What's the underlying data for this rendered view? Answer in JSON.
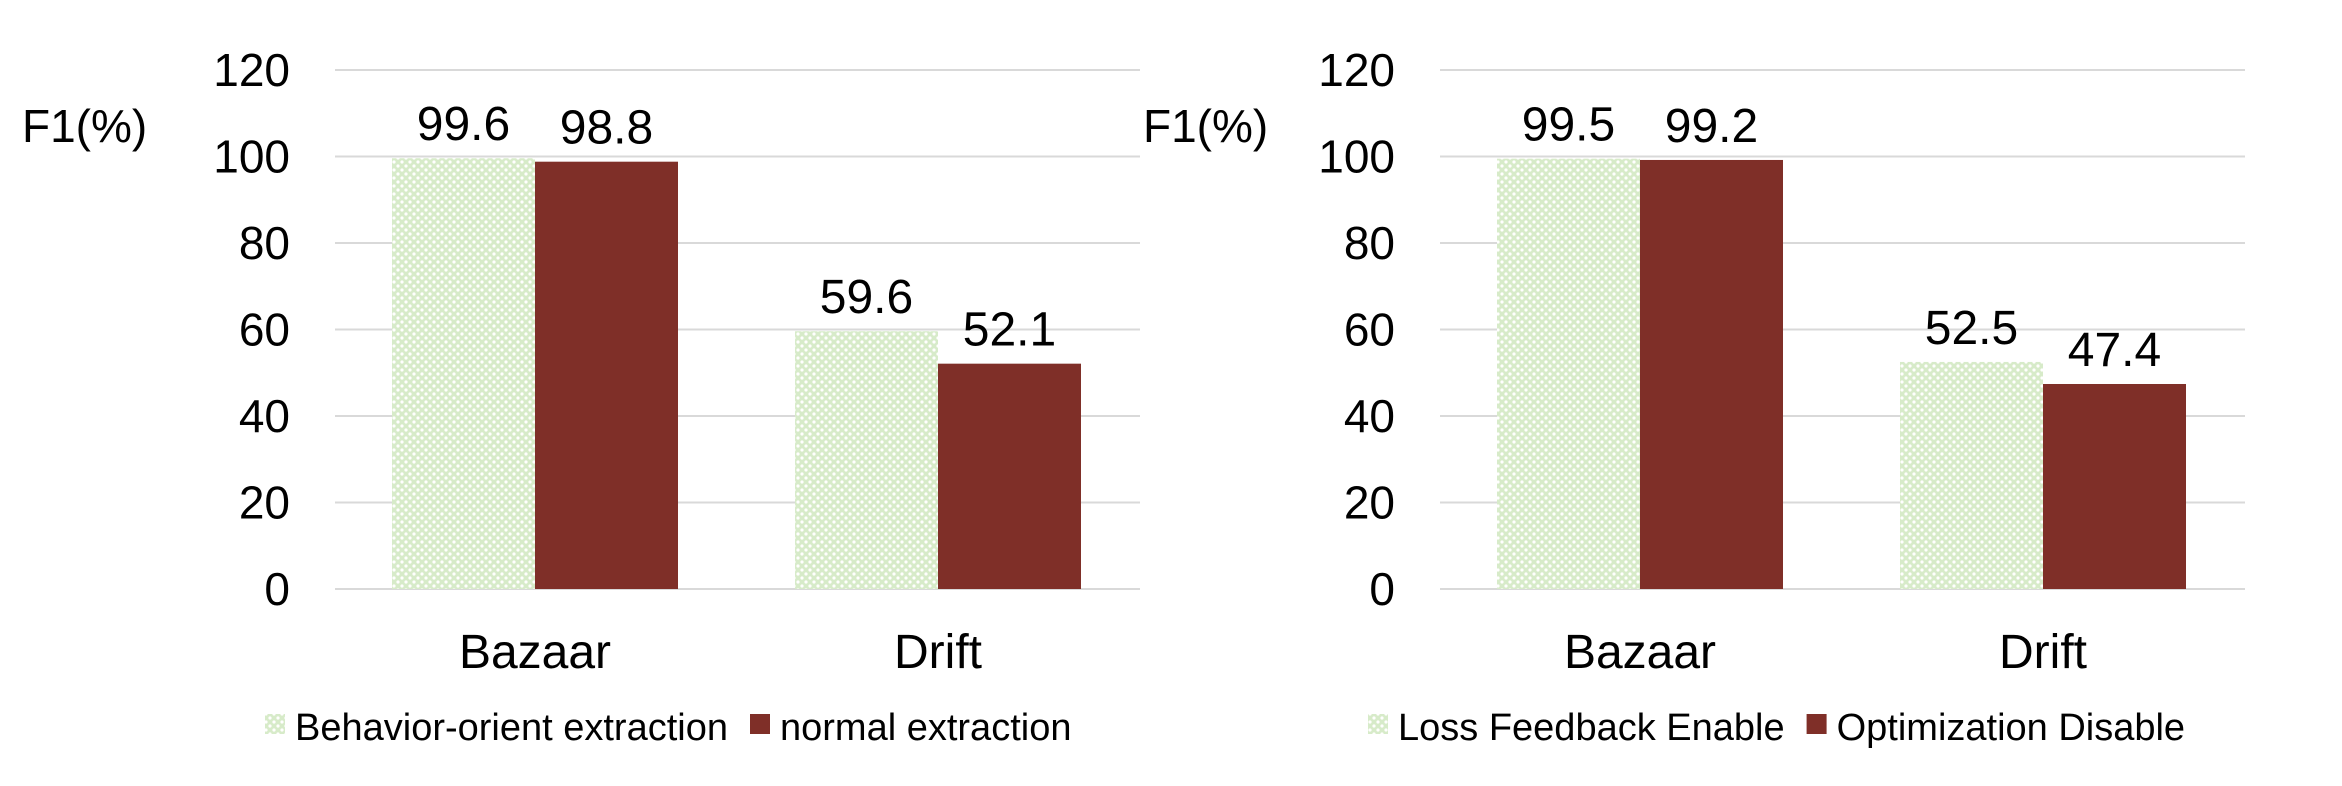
{
  "chart_data": [
    {
      "type": "bar",
      "ylabel": "F1(%)",
      "ylim": [
        0,
        120
      ],
      "yticks": [
        0,
        20,
        40,
        60,
        80,
        100,
        120
      ],
      "grid": true,
      "legend_position": "bottom",
      "categories": [
        "Bazaar",
        "Drift"
      ],
      "series": [
        {
          "name": "Behavior-orient extraction",
          "values": [
            99.6,
            59.6
          ],
          "labels": [
            "99.6",
            "59.6"
          ],
          "color": "#c5e0b4",
          "pattern": "dotted"
        },
        {
          "name": "normal extraction",
          "values": [
            98.8,
            52.1
          ],
          "labels": [
            "98.8",
            "52.1"
          ],
          "color": "#7f2f28",
          "pattern": "solid"
        }
      ]
    },
    {
      "type": "bar",
      "ylabel": "F1(%)",
      "ylim": [
        0,
        120
      ],
      "yticks": [
        0,
        20,
        40,
        60,
        80,
        100,
        120
      ],
      "grid": true,
      "legend_position": "bottom",
      "categories": [
        "Bazaar",
        "Drift"
      ],
      "series": [
        {
          "name": "Loss Feedback Enable",
          "values": [
            99.5,
            52.5
          ],
          "labels": [
            "99.5",
            "52.5"
          ],
          "color": "#c5e0b4",
          "pattern": "dotted"
        },
        {
          "name": "Optimization Disable",
          "values": [
            99.2,
            47.4
          ],
          "labels": [
            "99.2",
            "47.4"
          ],
          "color": "#7f2f28",
          "pattern": "solid"
        }
      ]
    }
  ]
}
